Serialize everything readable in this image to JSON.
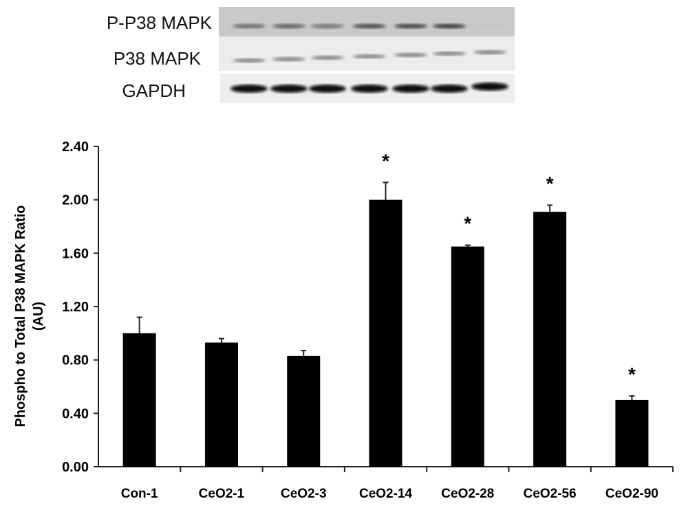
{
  "blot": {
    "labels": [
      "P-P38 MAPK",
      "P38 MAPK",
      "GAPDH"
    ]
  },
  "chart_data": {
    "type": "bar",
    "title": "",
    "xlabel": "",
    "ylabel": "Phospho to Total P38 MAPK Ratio",
    "ylabel2": "(AU)",
    "ylim": [
      0,
      2.4
    ],
    "yticks": [
      "0.00",
      "0.40",
      "0.80",
      "1.20",
      "1.60",
      "2.00",
      "2.40"
    ],
    "categories": [
      "Con-1",
      "CeO2-1",
      "CeO2-3",
      "CeO2-14",
      "CeO2-28",
      "CeO2-56",
      "CeO2-90"
    ],
    "values": [
      1.0,
      0.93,
      0.83,
      2.0,
      1.65,
      1.91,
      0.5
    ],
    "error_upper": [
      0.12,
      0.03,
      0.04,
      0.13,
      0.01,
      0.05,
      0.03
    ],
    "significance": [
      "",
      "",
      "",
      "*",
      "*",
      "*",
      "*"
    ],
    "bar_color": "#000000",
    "grid": false
  }
}
